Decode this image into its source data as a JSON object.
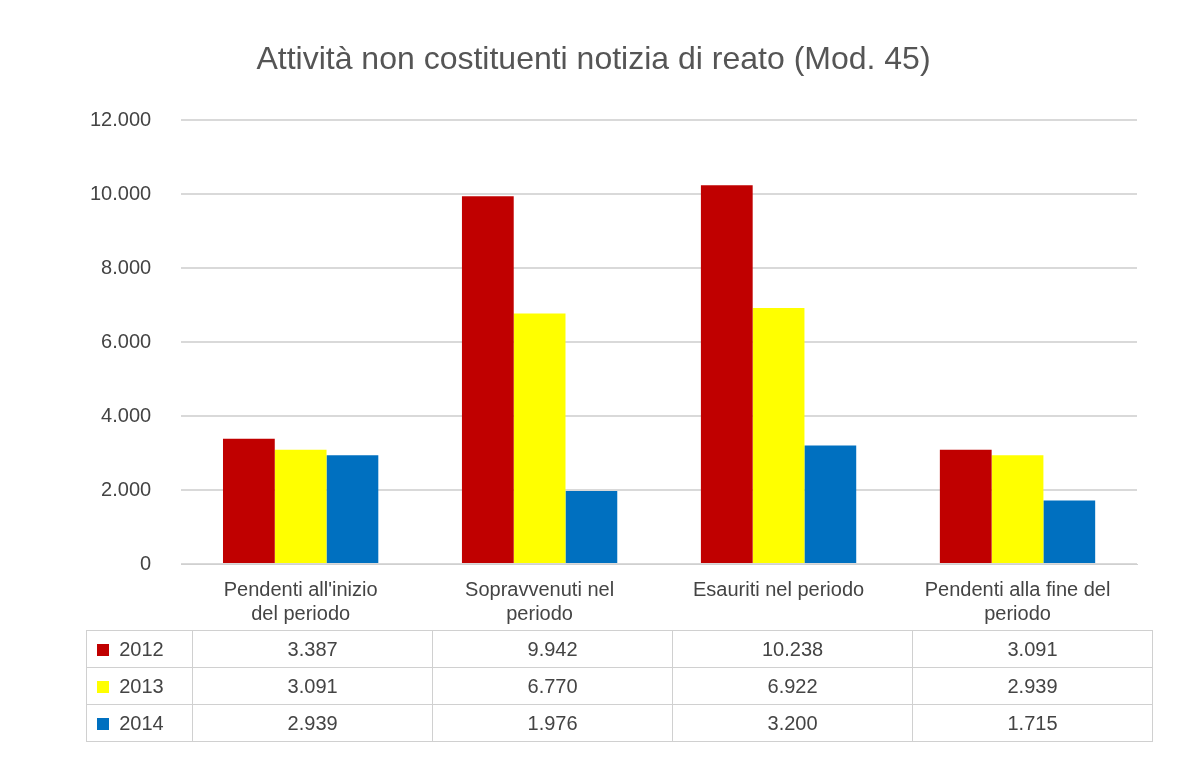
{
  "chart_data": {
    "type": "bar",
    "title": "Attività non costituenti notizia di reato (Mod. 45)",
    "categories": [
      "Pendenti all'inizio del periodo",
      "Sopravvenuti nel periodo",
      "Esauriti nel periodo",
      "Pendenti alla fine del periodo"
    ],
    "series": [
      {
        "name": "2012",
        "color": "#c00000",
        "values": [
          3387,
          9942,
          10238,
          3091
        ],
        "value_labels": [
          "3.387",
          "9.942",
          "10.238",
          "3.091"
        ]
      },
      {
        "name": "2013",
        "color": "#ffff00",
        "values": [
          3091,
          6770,
          6922,
          2939
        ],
        "value_labels": [
          "3.091",
          "6.770",
          "6.922",
          "2.939"
        ]
      },
      {
        "name": "2014",
        "color": "#0070c0",
        "values": [
          2939,
          1976,
          3200,
          1715
        ],
        "value_labels": [
          "2.939",
          "1.976",
          "3.200",
          "1.715"
        ]
      }
    ],
    "ylim": [
      0,
      12000
    ],
    "yticks": [
      0,
      {
        "value": 2000,
        "label": "2.000"
      },
      {
        "value": 4000,
        "label": "4.000"
      },
      {
        "value": 6000,
        "label": "6.000"
      },
      {
        "value": 8000,
        "label": "8.000"
      },
      {
        "value": 10000,
        "label": "10.000"
      },
      {
        "value": 12000,
        "label": "12.000"
      }
    ],
    "grid": "y",
    "legend": "bottom left"
  }
}
